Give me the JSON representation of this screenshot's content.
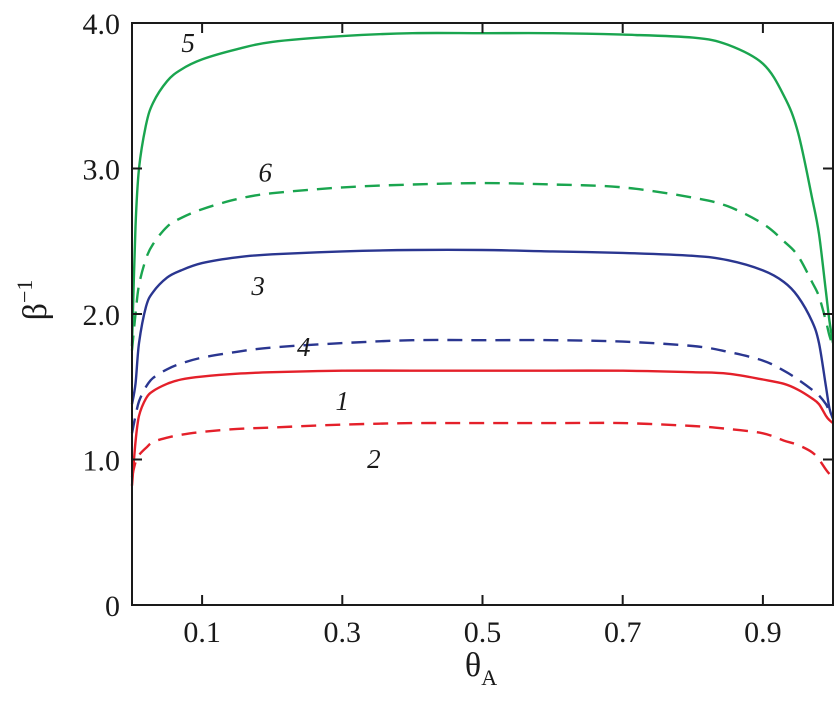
{
  "chart_data": {
    "type": "line",
    "xlabel": "θ",
    "xlabel_sub": "A",
    "ylabel": "β",
    "ylabel_sup": "−1",
    "xlim": [
      0,
      1
    ],
    "ylim": [
      0,
      4
    ],
    "xticks": [
      0.1,
      0.3,
      0.5,
      0.7,
      0.9
    ],
    "xtick_labels": [
      "0.1",
      "0.3",
      "0.5",
      "0.7",
      "0.9"
    ],
    "yticks": [
      0,
      1,
      2,
      3,
      4
    ],
    "ytick_labels": [
      "0",
      "1.0",
      "2.0",
      "3.0",
      "4.0"
    ],
    "grid": false,
    "x": [
      0.0,
      0.005,
      0.01,
      0.02,
      0.03,
      0.05,
      0.07,
      0.1,
      0.15,
      0.2,
      0.3,
      0.4,
      0.5,
      0.6,
      0.7,
      0.8,
      0.85,
      0.9,
      0.93,
      0.95,
      0.97,
      0.98,
      0.99,
      0.995,
      1.0
    ],
    "series": [
      {
        "label": "1",
        "color": "#e4202a",
        "dash": false,
        "values": [
          0.82,
          1.12,
          1.3,
          1.42,
          1.47,
          1.52,
          1.55,
          1.57,
          1.59,
          1.6,
          1.61,
          1.61,
          1.61,
          1.61,
          1.61,
          1.6,
          1.59,
          1.55,
          1.52,
          1.48,
          1.42,
          1.38,
          1.3,
          1.27,
          1.25
        ]
      },
      {
        "label": "2",
        "color": "#e4202a",
        "dash": true,
        "values": [
          0.88,
          0.98,
          1.03,
          1.08,
          1.12,
          1.15,
          1.17,
          1.19,
          1.21,
          1.22,
          1.24,
          1.25,
          1.25,
          1.25,
          1.25,
          1.23,
          1.21,
          1.18,
          1.13,
          1.1,
          1.05,
          1.0,
          0.93,
          0.9,
          0.88
        ]
      },
      {
        "label": "3",
        "color": "#2a3690",
        "dash": false,
        "values": [
          1.38,
          1.52,
          1.8,
          2.05,
          2.15,
          2.25,
          2.3,
          2.35,
          2.39,
          2.41,
          2.43,
          2.44,
          2.44,
          2.43,
          2.42,
          2.4,
          2.37,
          2.3,
          2.22,
          2.12,
          1.95,
          1.8,
          1.5,
          1.35,
          1.28
        ]
      },
      {
        "label": "4",
        "color": "#2a3690",
        "dash": true,
        "values": [
          1.18,
          1.3,
          1.4,
          1.5,
          1.56,
          1.62,
          1.66,
          1.7,
          1.74,
          1.77,
          1.8,
          1.82,
          1.82,
          1.82,
          1.81,
          1.78,
          1.74,
          1.68,
          1.61,
          1.55,
          1.48,
          1.44,
          1.38,
          1.33,
          1.3
        ]
      },
      {
        "label": "5",
        "color": "#1aa54f",
        "dash": false,
        "values": [
          1.78,
          2.6,
          3.0,
          3.3,
          3.45,
          3.6,
          3.68,
          3.75,
          3.82,
          3.87,
          3.91,
          3.93,
          3.93,
          3.93,
          3.92,
          3.9,
          3.85,
          3.72,
          3.5,
          3.25,
          2.8,
          2.55,
          2.15,
          1.95,
          1.8
        ]
      },
      {
        "label": "6",
        "color": "#1aa54f",
        "dash": true,
        "values": [
          1.75,
          2.0,
          2.2,
          2.38,
          2.48,
          2.6,
          2.66,
          2.72,
          2.79,
          2.83,
          2.87,
          2.89,
          2.9,
          2.89,
          2.87,
          2.8,
          2.74,
          2.62,
          2.5,
          2.4,
          2.22,
          2.12,
          1.95,
          1.85,
          1.78
        ]
      }
    ],
    "annotations": [
      {
        "text": "5",
        "x": 0.08,
        "y": 3.8
      },
      {
        "text": "6",
        "x": 0.19,
        "y": 2.91
      },
      {
        "text": "3",
        "x": 0.18,
        "y": 2.13
      },
      {
        "text": "4",
        "x": 0.245,
        "y": 1.71
      },
      {
        "text": "1",
        "x": 0.3,
        "y": 1.34
      },
      {
        "text": "2",
        "x": 0.345,
        "y": 0.94
      }
    ]
  }
}
